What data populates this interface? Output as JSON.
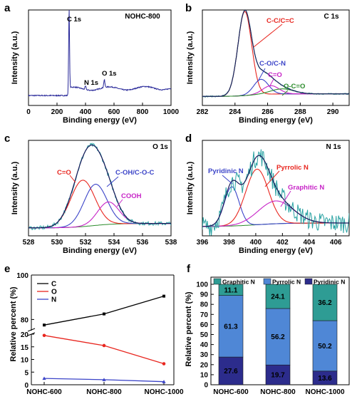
{
  "panels": {
    "a": {
      "label": "a",
      "title": "NOHC-800",
      "xlabel": "Binding energy (eV)",
      "ylabel": "Intensity (a.u.)",
      "xticks": [
        "0",
        "200",
        "400",
        "600",
        "800",
        "1000"
      ],
      "annotations": {
        "c1s": "C 1s",
        "n1s": "N 1s",
        "o1s": "O 1s"
      }
    },
    "b": {
      "label": "b",
      "title": "C 1s",
      "xlabel": "Binding energy (eV)",
      "ylabel": "Intensity (a.u.)",
      "xticks": [
        "282",
        "284",
        "286",
        "288",
        "290"
      ],
      "annotations": {
        "cc": "C-C/C=C",
        "co": "C-O/C-N",
        "c_o": "C=O",
        "oco": "O-C=O"
      }
    },
    "c": {
      "label": "c",
      "title": "O 1s",
      "xlabel": "Binding energy (eV)",
      "ylabel": "Intensity (a.u.)",
      "xticks": [
        "528",
        "530",
        "532",
        "534",
        "536",
        "538"
      ],
      "annotations": {
        "c_o": "C=O",
        "coh": "C-OH/C-O-C",
        "cooh": "COOH"
      }
    },
    "d": {
      "label": "d",
      "title": "N 1s",
      "xlabel": "Binding energy (eV)",
      "ylabel": "Intensity (a.u.)",
      "xticks": [
        "396",
        "398",
        "400",
        "402",
        "404",
        "406"
      ],
      "annotations": {
        "pyridinic": "Pyridinic N",
        "pyrrolic": "Pyrrolic N",
        "graphitic": "Graphitic N"
      }
    },
    "e": {
      "label": "e",
      "ylabel": "Relative percent (%)",
      "yticks_upper": [
        "80",
        "100"
      ],
      "yticks_lower": [
        "0",
        "5",
        "10",
        "15",
        "20"
      ]
    },
    "f": {
      "label": "f",
      "ylabel": "Relative percent (%)",
      "yticks": [
        "0",
        "10",
        "20",
        "30",
        "40",
        "50",
        "60",
        "70",
        "80",
        "90",
        "100"
      ]
    }
  },
  "chart_data": [
    {
      "panel": "a",
      "type": "line",
      "title": "NOHC-800",
      "xlabel": "Binding energy (eV)",
      "ylabel": "Intensity (a.u.)",
      "xlim": [
        0,
        1000
      ],
      "peaks": [
        {
          "name": "C 1s",
          "x": 284.6
        },
        {
          "name": "N 1s",
          "x": 400
        },
        {
          "name": "O 1s",
          "x": 532
        }
      ]
    },
    {
      "panel": "b",
      "type": "line",
      "title": "C 1s",
      "xlabel": "Binding energy (eV)",
      "ylabel": "Intensity (a.u.)",
      "xlim": [
        282,
        291
      ],
      "series": [
        {
          "name": "C-C/C=C",
          "center": 284.6
        },
        {
          "name": "C-O/C-N",
          "center": 285.6
        },
        {
          "name": "C=O",
          "center": 286.2
        },
        {
          "name": "O-C=O",
          "center": 286.8
        }
      ]
    },
    {
      "panel": "c",
      "type": "line",
      "title": "O 1s",
      "xlabel": "Binding energy (eV)",
      "ylabel": "Intensity (a.u.)",
      "xlim": [
        528,
        538
      ],
      "series": [
        {
          "name": "C=O",
          "center": 531.8
        },
        {
          "name": "C-OH/C-O-C",
          "center": 532.7
        },
        {
          "name": "COOH",
          "center": 533.6
        }
      ]
    },
    {
      "panel": "d",
      "type": "line",
      "title": "N 1s",
      "xlabel": "Binding energy (eV)",
      "ylabel": "Intensity (a.u.)",
      "xlim": [
        396,
        407
      ],
      "series": [
        {
          "name": "Pyridinic N",
          "center": 398.2
        },
        {
          "name": "Pyrrolic N",
          "center": 400.1
        },
        {
          "name": "Graphitic N",
          "center": 401.5
        }
      ]
    },
    {
      "panel": "e",
      "type": "line",
      "ylabel": "Relative percent (%)",
      "categories": [
        "NOHC-600",
        "NOHC-800",
        "NOHC-1000"
      ],
      "legend": "top-left",
      "axis_break": [
        20,
        75
      ],
      "ylim": [
        0,
        100
      ],
      "series": [
        {
          "name": "C",
          "values": [
            77.5,
            82.5,
            90.5
          ],
          "color": "#000000"
        },
        {
          "name": "O",
          "values": [
            19.5,
            15.5,
            8.3
          ],
          "color": "#e8261f"
        },
        {
          "name": "N",
          "values": [
            2.5,
            2.0,
            1.2
          ],
          "color": "#3b44c8"
        }
      ]
    },
    {
      "panel": "f",
      "type": "bar",
      "stacked": true,
      "ylabel": "Relative percent (%)",
      "categories": [
        "NOHC-600",
        "NOHC-800",
        "NOHC-1000"
      ],
      "ylim": [
        0,
        100
      ],
      "legend": "top",
      "series": [
        {
          "name": "Pyridinic N",
          "values": [
            27.6,
            19.7,
            13.6
          ],
          "color": "#2c2c8c"
        },
        {
          "name": "Pyrrolic N",
          "values": [
            61.3,
            56.2,
            50.2
          ],
          "color": "#4f87d6"
        },
        {
          "name": "Graphitic N",
          "values": [
            11.1,
            24.1,
            36.2
          ],
          "color": "#2e9c94"
        }
      ]
    }
  ]
}
